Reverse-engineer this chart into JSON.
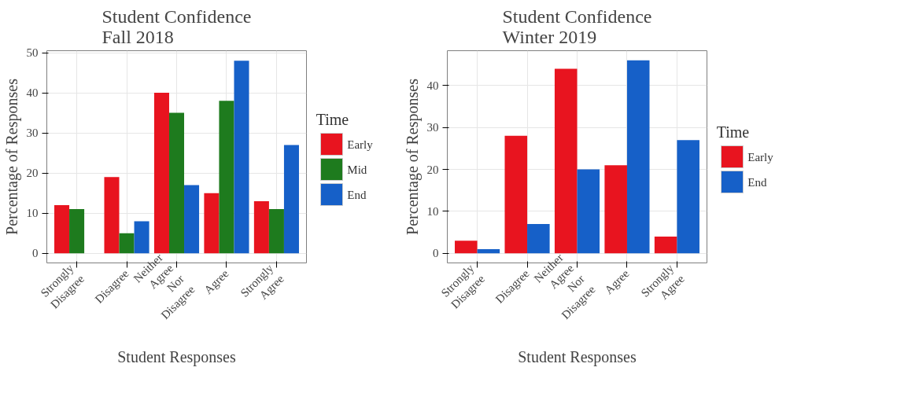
{
  "chart_data": [
    {
      "type": "bar",
      "title": "Student Confidence\nFall 2018",
      "xlabel": "Student Responses",
      "ylabel": "Percentage of Responses",
      "legend_title": "Time",
      "categories": [
        "Strongly Disagree",
        "Disagree",
        "Neither Agree Nor Disagree",
        "Agree",
        "Strongly Agree"
      ],
      "series": [
        {
          "name": "Early",
          "color": "#e8141f",
          "values": [
            12,
            19,
            40,
            15,
            13
          ]
        },
        {
          "name": "Mid",
          "color": "#1e7b1e",
          "values": [
            11,
            5,
            35,
            38,
            11
          ]
        },
        {
          "name": "End",
          "color": "#1660c8",
          "values": [
            0,
            8,
            17,
            48,
            27
          ]
        }
      ],
      "ylim": [
        -2.4,
        50.5
      ],
      "yticks": [
        0,
        10,
        20,
        30,
        40,
        50
      ],
      "grid": true,
      "legend": "right"
    },
    {
      "type": "bar",
      "title": "Student Confidence\nWinter 2019",
      "xlabel": "Student Responses",
      "ylabel": "Percentage of Responses",
      "legend_title": "Time",
      "categories": [
        "Strongly Disagree",
        "Disagree",
        "Neither Agree Nor Disagree",
        "Agree",
        "Strongly Agree"
      ],
      "series": [
        {
          "name": "Early",
          "color": "#e8141f",
          "values": [
            3,
            28,
            44,
            21,
            4
          ]
        },
        {
          "name": "End",
          "color": "#1660c8",
          "values": [
            1,
            7,
            20,
            46,
            27
          ]
        }
      ],
      "ylim": [
        -2.3,
        48.3
      ],
      "yticks": [
        0,
        10,
        20,
        30,
        40
      ],
      "grid": true,
      "legend": "right"
    }
  ]
}
